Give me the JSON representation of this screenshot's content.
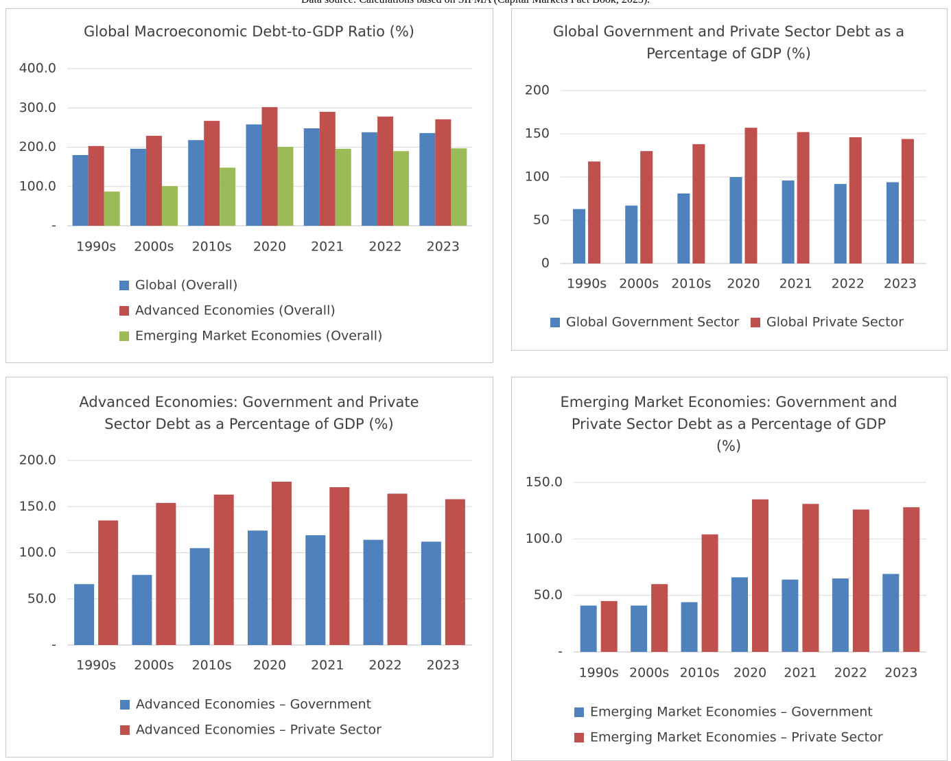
{
  "source": "Data source: Calculations based on SIFMA (Capital Markets Fact Book, 2023).",
  "chart_data": [
    {
      "type": "bar",
      "title": "Global Macroeconomic Debt-to-GDP Ratio (%)",
      "categories": [
        "1990s",
        "2000s",
        "2010s",
        "2020",
        "2021",
        "2022",
        "2023"
      ],
      "series": [
        {
          "name": "Global (Overall)",
          "color": "#4f81bd",
          "values": [
            180,
            196,
            218,
            258,
            248,
            238,
            236
          ]
        },
        {
          "name": "Advanced Economies (Overall)",
          "color": "#c0504d",
          "values": [
            203,
            229,
            267,
            302,
            290,
            278,
            271
          ]
        },
        {
          "name": "Emerging Market Economies (Overall)",
          "color": "#9bbb59",
          "values": [
            87,
            101,
            148,
            201,
            196,
            190,
            197
          ]
        }
      ],
      "ylim": [
        0,
        400
      ],
      "yticks": [
        {
          "value": 0,
          "label": "-"
        },
        {
          "value": 100,
          "label": "100.0"
        },
        {
          "value": 200,
          "label": "200.0"
        },
        {
          "value": 300,
          "label": "300.0"
        },
        {
          "value": 400,
          "label": "400.0"
        }
      ],
      "grid": true
    },
    {
      "type": "bar",
      "title": "Global Government and Private Sector Debt as a Percentage of GDP (%)",
      "categories": [
        "1990s",
        "2000s",
        "2010s",
        "2020",
        "2021",
        "2022",
        "2023"
      ],
      "series": [
        {
          "name": "Global Government Sector",
          "color": "#4f81bd",
          "values": [
            63,
            67,
            81,
            100,
            96,
            92,
            94
          ]
        },
        {
          "name": "Global Private Sector",
          "color": "#c0504d",
          "values": [
            118,
            130,
            138,
            157,
            152,
            146,
            144
          ]
        }
      ],
      "ylim": [
        0,
        200
      ],
      "yticks": [
        0,
        50,
        100,
        150,
        200
      ],
      "grid": true
    },
    {
      "type": "bar",
      "title": "Advanced Economies: Government and Private Sector Debt as a Percentage of GDP (%)",
      "categories": [
        "1990s",
        "2000s",
        "2010s",
        "2020",
        "2021",
        "2022",
        "2023"
      ],
      "series": [
        {
          "name": "Advanced Economies – Government",
          "color": "#4f81bd",
          "values": [
            66,
            76,
            105,
            124,
            119,
            114,
            112
          ]
        },
        {
          "name": "Advanced Economies – Private Sector",
          "color": "#c0504d",
          "values": [
            135,
            154,
            163,
            177,
            171,
            164,
            158
          ]
        }
      ],
      "ylim": [
        0,
        200
      ],
      "yticks": [
        {
          "value": 0,
          "label": "-"
        },
        {
          "value": 50,
          "label": "50.0"
        },
        {
          "value": 100,
          "label": "100.0"
        },
        {
          "value": 150,
          "label": "150.0"
        },
        {
          "value": 200,
          "label": "200.0"
        }
      ],
      "grid": true
    },
    {
      "type": "bar",
      "title": "Emerging Market Economies: Government and Private Sector Debt as a Percentage of GDP (%)",
      "categories": [
        "1990s",
        "2000s",
        "2010s",
        "2020",
        "2021",
        "2022",
        "2023"
      ],
      "series": [
        {
          "name": "Emerging Market Economies – Government",
          "color": "#4f81bd",
          "values": [
            41,
            41,
            44,
            66,
            64,
            65,
            69
          ]
        },
        {
          "name": "Emerging Market Economies – Private Sector",
          "color": "#c0504d",
          "values": [
            45,
            60,
            104,
            135,
            131,
            126,
            128
          ]
        }
      ],
      "ylim": [
        0,
        150
      ],
      "yticks": [
        {
          "value": 0,
          "label": "-"
        },
        {
          "value": 50,
          "label": "50.0"
        },
        {
          "value": 100,
          "label": "100.0"
        },
        {
          "value": 150,
          "label": "150.0"
        }
      ],
      "grid": true
    }
  ]
}
